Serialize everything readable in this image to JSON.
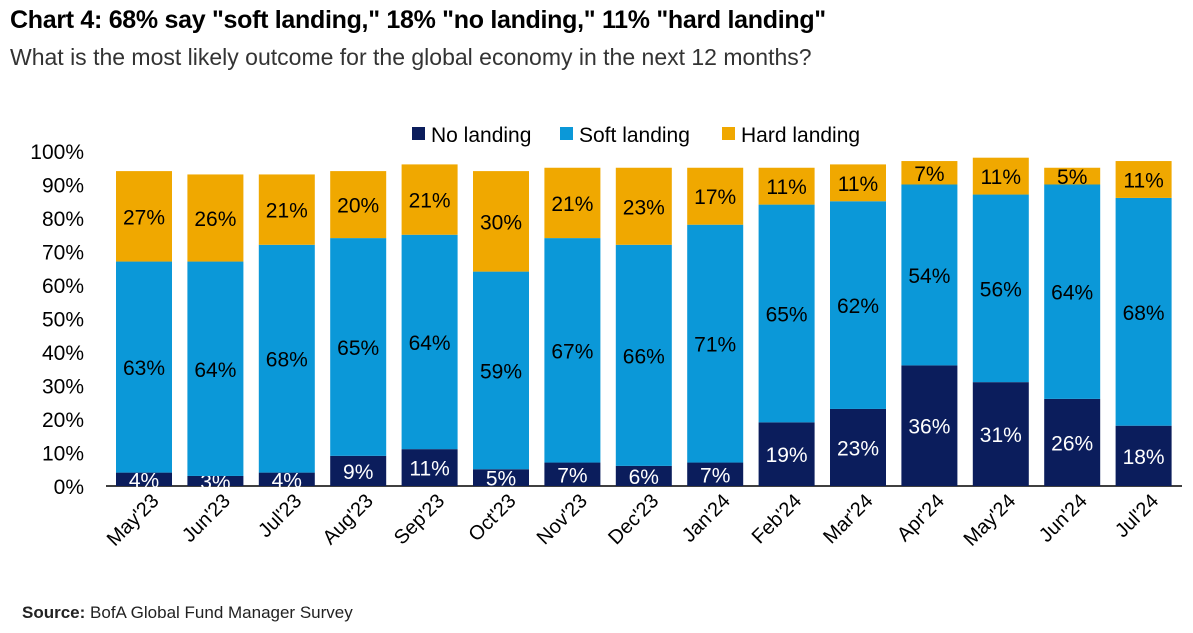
{
  "title": "Chart 4: 68% say \"soft landing,\" 18% \"no landing,\" 11% \"hard landing\"",
  "subtitle": "What is the most likely outcome for the global economy in the next 12 months?",
  "source_label": "Source:",
  "source_text": " BofA Global Fund Manager Survey",
  "colors": {
    "no_landing": "#0b1d5c",
    "soft_landing": "#0b98d8",
    "hard_landing": "#f0a800"
  },
  "chart_data": {
    "type": "bar",
    "stacked": true,
    "categories": [
      "May'23",
      "Jun'23",
      "Jul'23",
      "Aug'23",
      "Sep'23",
      "Oct'23",
      "Nov'23",
      "Dec'23",
      "Jan'24",
      "Feb'24",
      "Mar'24",
      "Apr'24",
      "May'24",
      "Jun'24",
      "Jul'24"
    ],
    "series": [
      {
        "name": "No landing",
        "values": [
          4,
          3,
          4,
          9,
          11,
          5,
          7,
          6,
          7,
          19,
          23,
          36,
          31,
          26,
          18
        ]
      },
      {
        "name": "Soft landing",
        "values": [
          63,
          64,
          68,
          65,
          64,
          59,
          67,
          66,
          71,
          65,
          62,
          54,
          56,
          64,
          68
        ]
      },
      {
        "name": "Hard landing",
        "values": [
          27,
          26,
          21,
          20,
          21,
          30,
          21,
          23,
          17,
          11,
          11,
          7,
          11,
          5,
          11
        ]
      }
    ],
    "ylim": [
      0,
      100
    ],
    "yticks": [
      "0%",
      "10%",
      "20%",
      "30%",
      "40%",
      "50%",
      "60%",
      "70%",
      "80%",
      "90%",
      "100%"
    ],
    "legend_position": "top",
    "grid": false
  }
}
